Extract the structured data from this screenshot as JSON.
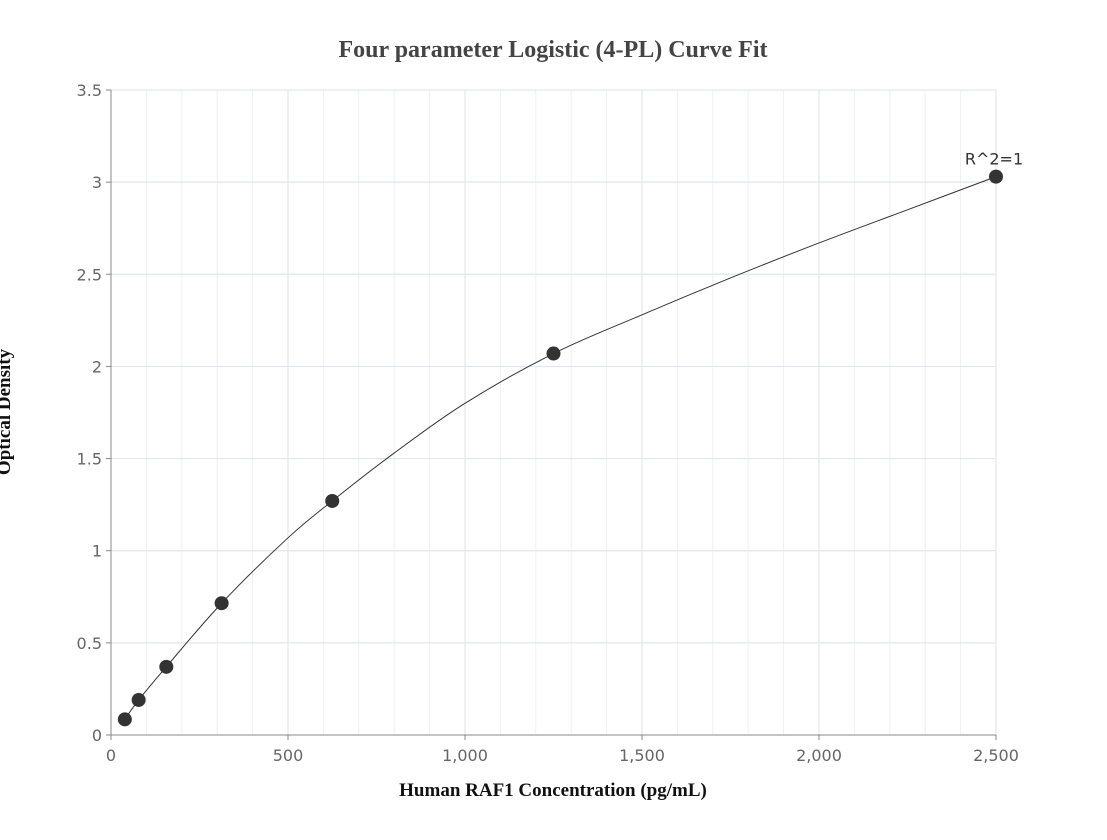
{
  "chart_data": {
    "type": "scatter",
    "title": "Four parameter Logistic (4-PL) Curve Fit",
    "xlabel": "Human RAF1 Concentration (pg/mL)",
    "ylabel": "Optical Density",
    "xlim": [
      0,
      2500
    ],
    "ylim": [
      0,
      3.5
    ],
    "x_ticks": [
      0,
      500,
      1000,
      1500,
      2000,
      2500
    ],
    "x_tick_labels": [
      "0",
      "500",
      "1,000",
      "1,500",
      "2,000",
      "2,500"
    ],
    "y_ticks": [
      0,
      0.5,
      1,
      1.5,
      2,
      2.5,
      3,
      3.5
    ],
    "y_tick_labels": [
      "0",
      "0.5",
      "1",
      "1.5",
      "2",
      "2.5",
      "3",
      "3.5"
    ],
    "grid": true,
    "series": [
      {
        "x": [
          39.06,
          78.13,
          156.25,
          312.5,
          625,
          1250,
          2500
        ],
        "y": [
          0.085,
          0.19,
          0.37,
          0.715,
          1.27,
          2.07,
          3.03
        ]
      }
    ],
    "fit_curve": {
      "x": [
        39.06,
        78.13,
        156.25,
        312.5,
        500,
        625,
        800,
        1000,
        1250,
        1500,
        1750,
        2000,
        2250,
        2500
      ],
      "y": [
        0.085,
        0.19,
        0.37,
        0.715,
        1.07,
        1.27,
        1.53,
        1.8,
        2.07,
        2.28,
        2.48,
        2.67,
        2.85,
        3.03
      ]
    },
    "annotations": [
      {
        "text": "R^2=1",
        "x": 2500,
        "y": 3.03
      }
    ]
  }
}
